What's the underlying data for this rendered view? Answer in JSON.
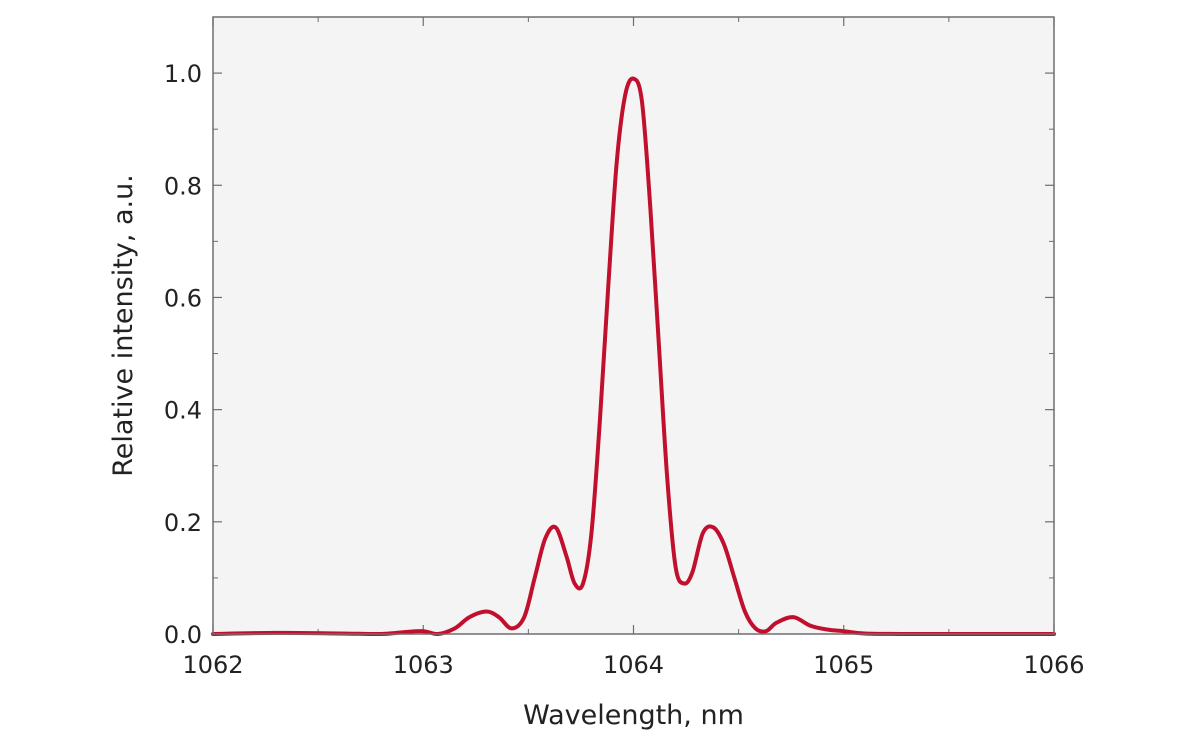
{
  "chart_data": {
    "type": "line",
    "xlabel": "Wavelength, nm",
    "ylabel": "Relative intensity, a.u.",
    "xlim": [
      1062,
      1066
    ],
    "ylim": [
      0,
      1.1
    ],
    "x_ticks": [
      1062,
      1063,
      1064,
      1065,
      1066
    ],
    "x_tick_labels": [
      "1062",
      "1063",
      "1064",
      "1065",
      "1066"
    ],
    "y_ticks": [
      0,
      0.2,
      0.4,
      0.6,
      0.8,
      1.0
    ],
    "y_tick_labels": [
      "0.0",
      "0.2",
      "0.4",
      "0.6",
      "0.8",
      "1.0"
    ],
    "grid": false,
    "plot_background": "#f4f4f4",
    "line_color": "#c0102e",
    "series": [
      {
        "x": [
          1062.0,
          1062.3,
          1062.6,
          1062.8,
          1062.9,
          1063.0,
          1063.07,
          1063.15,
          1063.22,
          1063.3,
          1063.36,
          1063.42,
          1063.48,
          1063.53,
          1063.58,
          1063.63,
          1063.68,
          1063.72,
          1063.76,
          1063.8,
          1063.84,
          1063.88,
          1063.92,
          1063.96,
          1064.0,
          1064.04,
          1064.08,
          1064.12,
          1064.16,
          1064.2,
          1064.24,
          1064.28,
          1064.33,
          1064.38,
          1064.43,
          1064.48,
          1064.53,
          1064.58,
          1064.63,
          1064.68,
          1064.76,
          1064.84,
          1064.92,
          1065.0,
          1065.1,
          1065.3,
          1065.6,
          1066.0
        ],
        "y": [
          0.0,
          0.002,
          0.001,
          0.0,
          0.003,
          0.005,
          0.0,
          0.01,
          0.03,
          0.04,
          0.03,
          0.01,
          0.03,
          0.1,
          0.17,
          0.19,
          0.14,
          0.09,
          0.09,
          0.18,
          0.38,
          0.62,
          0.84,
          0.96,
          0.99,
          0.95,
          0.76,
          0.52,
          0.28,
          0.12,
          0.09,
          0.11,
          0.18,
          0.19,
          0.16,
          0.1,
          0.04,
          0.01,
          0.005,
          0.02,
          0.03,
          0.015,
          0.008,
          0.005,
          0.001,
          0.0,
          0.0,
          0.0
        ]
      }
    ]
  }
}
